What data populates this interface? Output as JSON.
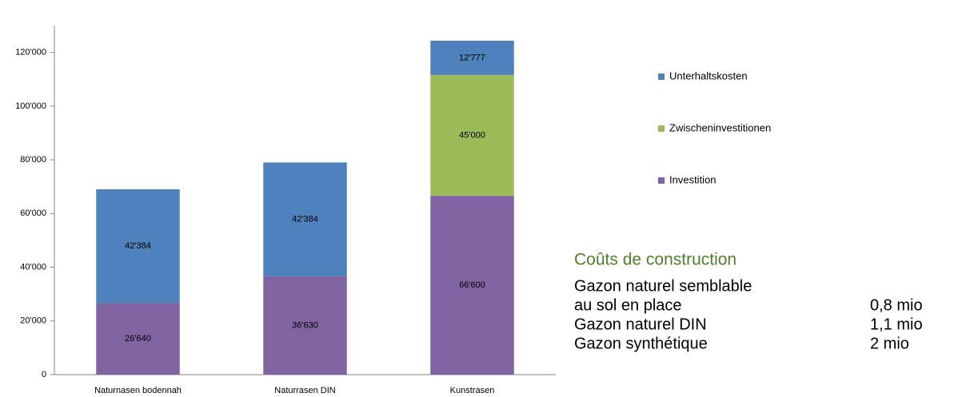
{
  "chart_data": {
    "type": "stacked_bar",
    "categories": [
      "Naturnasen bodennah",
      "Naturrasen DIN",
      "Kunstrasen"
    ],
    "series": [
      {
        "name": "Investition",
        "color": "#8064a2",
        "values": [
          26640,
          36630,
          66600
        ],
        "value_labels": [
          "26'640",
          "36'630",
          "66'600"
        ]
      },
      {
        "name": "Zwischeninvestitionen",
        "color": "#9bbb59",
        "values": [
          null,
          null,
          45000
        ],
        "value_labels": [
          null,
          null,
          "45'000"
        ]
      },
      {
        "name": "Unterhaltskosten",
        "color": "#4f81bd",
        "values": [
          42384,
          42384,
          12777
        ],
        "value_labels": [
          "42'384",
          "42'384",
          "12'777"
        ]
      }
    ],
    "ylim": [
      0,
      130000
    ],
    "yticks": [
      0,
      {
        "value": 20000,
        "label": "20'000"
      },
      {
        "value": 40000,
        "label": "40'000"
      },
      {
        "value": 60000,
        "label": "60'000"
      },
      {
        "value": 80000,
        "label": "80'000"
      },
      {
        "value": 100000,
        "label": "100'000"
      },
      {
        "value": 120000,
        "label": "120'000"
      }
    ],
    "legend": "right",
    "annotations": {
      "title": "Coûts de construction",
      "rows": [
        {
          "label": [
            "Gazon naturel semblable",
            "au sol en place"
          ],
          "value": "0,8 mio"
        },
        {
          "label": [
            "Gazon naturel DIN"
          ],
          "value": "1,1 mio"
        },
        {
          "label": [
            "Gazon synthétique"
          ],
          "value": "2 mio"
        }
      ]
    }
  }
}
